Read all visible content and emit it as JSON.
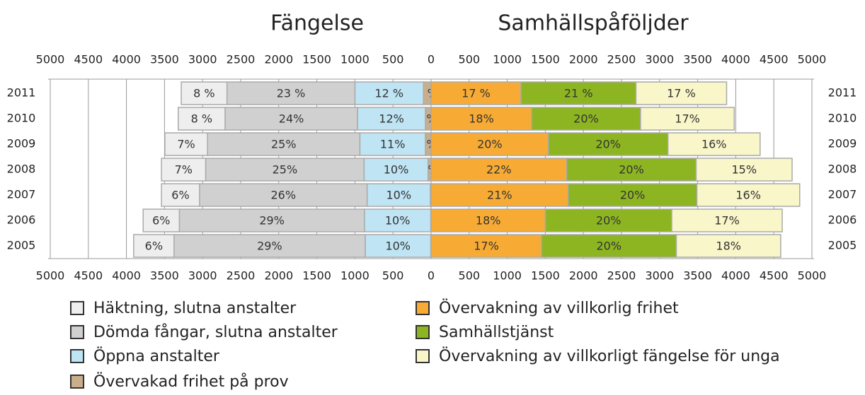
{
  "chart_data": {
    "type": "diverging-bar",
    "titles": [
      "Fängelse",
      "Samhällspåföljder"
    ],
    "categories": [
      "2011",
      "2010",
      "2009",
      "2008",
      "2007",
      "2006",
      "2005"
    ],
    "xlim": [
      -5000,
      5000
    ],
    "xticks": [
      {
        "value": -5000,
        "label": "5000"
      },
      {
        "value": -4500,
        "label": "4500"
      },
      {
        "value": -4000,
        "label": "4000"
      },
      {
        "value": -3500,
        "label": "3500"
      },
      {
        "value": -3000,
        "label": "3000"
      },
      {
        "value": -2500,
        "label": "2500"
      },
      {
        "value": -2000,
        "label": "2000"
      },
      {
        "value": -1500,
        "label": "1500"
      },
      {
        "value": -1000,
        "label": "1000"
      },
      {
        "value": -500,
        "label": "500"
      },
      0,
      500,
      1000,
      1500,
      2000,
      2500,
      3000,
      3500,
      4000,
      4500,
      5000
    ],
    "grid": true,
    "series": [
      {
        "name": "Häktning, slutna anstalter",
        "color": "#eeeeee",
        "values": [
          -600,
          -615,
          -560,
          -580,
          -500,
          -475,
          -530
        ],
        "value_labels": [
          "8 %",
          "8 %",
          "7%",
          "7%",
          "6%",
          "6%",
          "6%"
        ]
      },
      {
        "name": "Dömda fångar, slutna anstalter",
        "color": "#d0d0d0",
        "values": [
          -1680,
          -1740,
          -2000,
          -2080,
          -2200,
          -2430,
          -2510
        ],
        "value_labels": [
          "23 %",
          "24%",
          "25%",
          "25%",
          "26%",
          "29%",
          "29%"
        ]
      },
      {
        "name": "Öppna anstalter",
        "color": "#bfe4f4",
        "values": [
          -900,
          -890,
          -860,
          -840,
          -830,
          -870,
          -860
        ],
        "value_labels": [
          "12 %",
          "12%",
          "11%",
          "10%",
          "10%",
          "10%",
          "10%"
        ]
      },
      {
        "name": "Övervakad frihet på prov",
        "color": "#c9ae8c",
        "values": [
          -100,
          -75,
          -75,
          -40,
          -10,
          -5,
          -5
        ],
        "value_labels": [
          "2 %",
          "1%",
          "1%",
          "1%",
          null,
          null,
          null
        ]
      },
      {
        "name": "Övervakning av villkorlig frihet",
        "color": "#f7ab35",
        "values": [
          1180,
          1320,
          1540,
          1780,
          1800,
          1500,
          1450
        ],
        "value_labels": [
          "17 %",
          "18%",
          "20%",
          "22%",
          "21%",
          "18%",
          "17%"
        ]
      },
      {
        "name": "Samhällstjänst",
        "color": "#8db522",
        "values": [
          1510,
          1430,
          1570,
          1700,
          1690,
          1660,
          1770
        ],
        "value_labels": [
          "21 %",
          "20%",
          "20%",
          "20%",
          "20%",
          "20%",
          "20%"
        ]
      },
      {
        "name": "Övervakning av villkorligt fängelse för unga",
        "color": "#f9f6c9",
        "values": [
          1190,
          1230,
          1210,
          1260,
          1350,
          1450,
          1370
        ],
        "value_labels": [
          "17 %",
          "17%",
          "16%",
          "15%",
          "16%",
          "17%",
          "18%"
        ]
      }
    ]
  }
}
